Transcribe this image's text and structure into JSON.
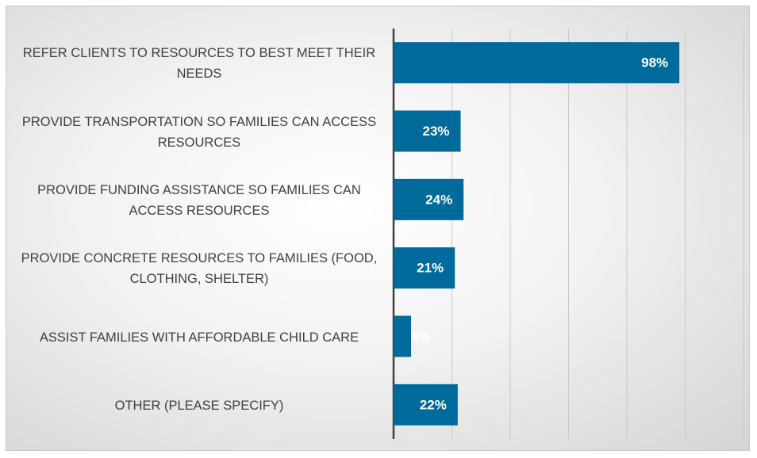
{
  "chart_data": {
    "type": "bar",
    "orientation": "horizontal",
    "categories": [
      "REFER CLIENTS TO RESOURCES TO BEST MEET THEIR NEEDS",
      "PROVIDE TRANSPORTATION SO FAMILIES CAN ACCESS RESOURCES",
      "PROVIDE FUNDING ASSISTANCE SO FAMILIES CAN ACCESS RESOURCES",
      "PROVIDE CONCRETE RESOURCES TO FAMILIES (FOOD, CLOTHING, SHELTER)",
      "ASSIST FAMILIES WITH AFFORDABLE CHILD CARE",
      "OTHER (PLEASE SPECIFY)"
    ],
    "values": [
      98,
      23,
      24,
      21,
      6,
      22
    ],
    "value_labels": [
      "98%",
      "23%",
      "24%",
      "21%",
      "6%",
      "22%"
    ],
    "color": "#006a9b",
    "xlim": [
      0,
      120
    ],
    "xticks": [
      0,
      20,
      40,
      60,
      80,
      100,
      120
    ],
    "grid": true
  }
}
